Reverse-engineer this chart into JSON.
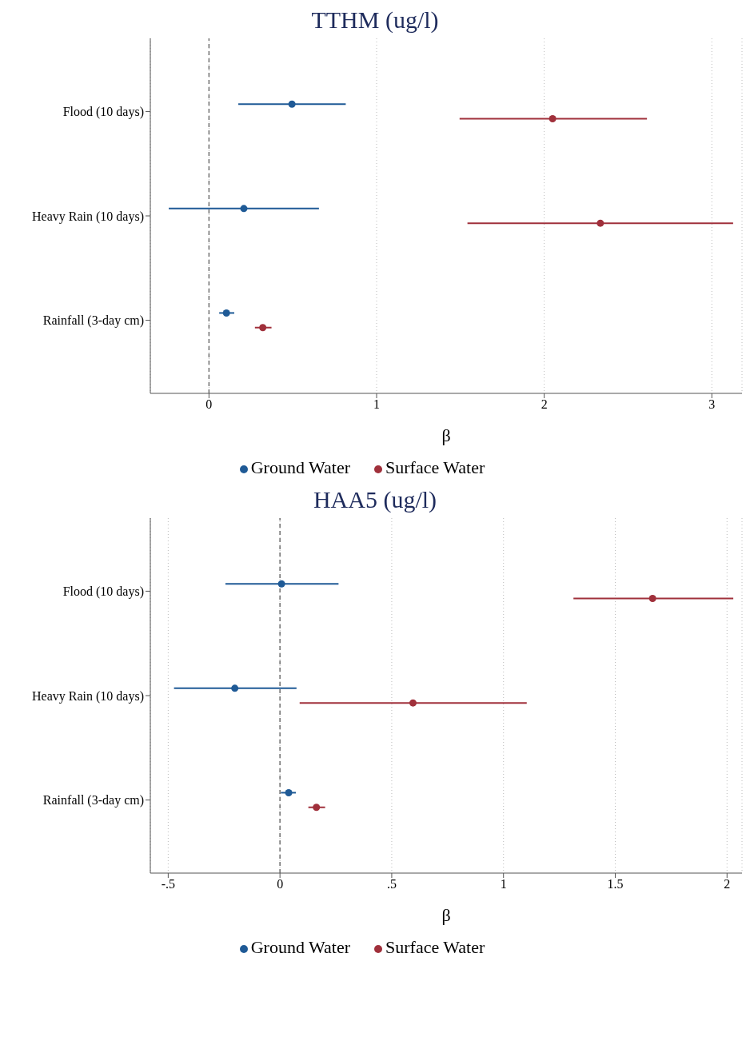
{
  "chart_data": [
    {
      "type": "scatter",
      "orientation": "horizontal",
      "title": "TTHM (ug/l)",
      "xlabel": "β",
      "categories": [
        "Flood (10 days)",
        "Heavy Rain (10 days)",
        "Rainfall (3-day cm)"
      ],
      "series": [
        {
          "name": "Ground Water",
          "color": "#1f5a96",
          "values": [
            0.495,
            0.208,
            0.104
          ],
          "errors": [
            [
              0.175,
              0.816
            ],
            [
              -0.24,
              0.656
            ],
            [
              0.061,
              0.151
            ]
          ]
        },
        {
          "name": "Surface Water",
          "color": "#a0303b",
          "values": [
            2.05,
            2.335,
            0.321
          ],
          "errors": [
            [
              1.495,
              2.613
            ],
            [
              1.542,
              3.127
            ],
            [
              0.274,
              0.373
            ]
          ]
        }
      ],
      "xlim": [
        -0.35,
        3.18
      ],
      "xticks": [
        0,
        1,
        2,
        3
      ],
      "grid": "x",
      "marker": "circle",
      "legend": "bottom",
      "ref_lines": [
        {
          "axis": "x",
          "value": 0,
          "color": "#707070",
          "line_style": "dashed"
        }
      ]
    },
    {
      "type": "scatter",
      "orientation": "horizontal",
      "title": "HAA5 (ug/l)",
      "xlabel": "β",
      "categories": [
        "Flood (10 days)",
        "Heavy Rain (10 days)",
        "Rainfall (3-day cm)"
      ],
      "series": [
        {
          "name": "Ground Water",
          "color": "#1f5a96",
          "values": [
            0.007,
            -0.202,
            0.039
          ],
          "errors": [
            [
              -0.244,
              0.262
            ],
            [
              -0.474,
              0.074
            ],
            [
              0.004,
              0.071
            ]
          ]
        },
        {
          "name": "Surface Water",
          "color": "#a0303b",
          "values": [
            1.667,
            0.595,
            0.163
          ],
          "errors": [
            [
              1.313,
              2.028
            ],
            [
              0.088,
              1.104
            ],
            [
              0.127,
              0.202
            ]
          ]
        }
      ],
      "xlim": [
        -0.58,
        2.067
      ],
      "xticks": [
        {
          "value": -0.5,
          "label": "-.5"
        },
        0,
        {
          "value": 0.5,
          "label": ".5"
        },
        1,
        {
          "value": 1.5,
          "label": "1.5"
        },
        2
      ],
      "grid": "x",
      "marker": "circle",
      "legend": "bottom",
      "ref_lines": [
        {
          "axis": "x",
          "value": 0,
          "color": "#707070",
          "line_style": "dashed"
        }
      ]
    }
  ]
}
